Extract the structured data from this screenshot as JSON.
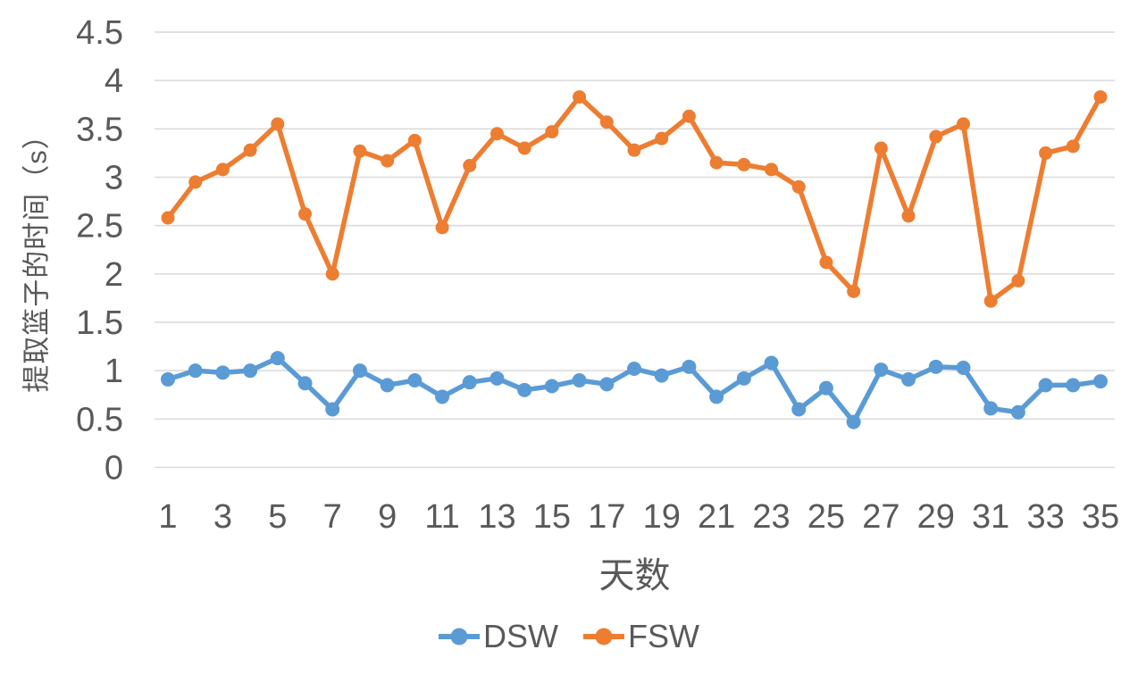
{
  "colors": {
    "background": "#ffffff",
    "grid": "#d9d9d9",
    "text": "#595959",
    "dsw_blue": "#5b9bd5",
    "fsw_orange": "#ed7d31"
  },
  "chart_data": {
    "type": "line",
    "title": "",
    "xlabel": "天数",
    "ylabel": "提取篮子的时间（s）",
    "ylim": [
      0,
      4.5
    ],
    "grid": "horizontal-only",
    "legend_position": "bottom-center",
    "y_ticks": [
      {
        "value": 0,
        "label": "0"
      },
      {
        "value": 0.5,
        "label": "0.5"
      },
      {
        "value": 1,
        "label": "1"
      },
      {
        "value": 1.5,
        "label": "1.5"
      },
      {
        "value": 2,
        "label": "2"
      },
      {
        "value": 2.5,
        "label": "2.5"
      },
      {
        "value": 3,
        "label": "3"
      },
      {
        "value": 3.5,
        "label": "3.5"
      },
      {
        "value": 4,
        "label": "4"
      },
      {
        "value": 4.5,
        "label": "4.5"
      }
    ],
    "x": [
      1,
      2,
      3,
      4,
      5,
      6,
      7,
      8,
      9,
      10,
      11,
      12,
      13,
      14,
      15,
      16,
      17,
      18,
      19,
      20,
      21,
      22,
      23,
      24,
      25,
      26,
      27,
      28,
      29,
      30,
      31,
      32,
      33,
      34,
      35
    ],
    "x_labeled_ticks": [
      1,
      3,
      5,
      7,
      9,
      11,
      13,
      15,
      17,
      19,
      21,
      23,
      25,
      27,
      29,
      31,
      33,
      35
    ],
    "series": [
      {
        "name": "DSW",
        "color": "#5b9bd5",
        "marker": "circle",
        "values": [
          0.91,
          1.0,
          0.98,
          1.0,
          1.13,
          0.87,
          0.6,
          1.0,
          0.85,
          0.9,
          0.73,
          0.88,
          0.92,
          0.8,
          0.84,
          0.9,
          0.86,
          1.02,
          0.95,
          1.04,
          0.73,
          0.92,
          1.08,
          0.6,
          0.82,
          0.47,
          1.01,
          0.91,
          1.04,
          1.03,
          0.61,
          0.57,
          0.85,
          0.85,
          0.89
        ]
      },
      {
        "name": "FSW",
        "color": "#ed7d31",
        "marker": "circle",
        "values": [
          2.58,
          2.95,
          3.08,
          3.28,
          3.55,
          2.62,
          2.0,
          3.27,
          3.17,
          3.38,
          2.48,
          3.12,
          3.45,
          3.3,
          3.47,
          3.83,
          3.57,
          3.28,
          3.4,
          3.63,
          3.15,
          3.13,
          3.08,
          2.9,
          2.12,
          1.82,
          3.3,
          2.6,
          3.42,
          3.55,
          1.72,
          1.93,
          3.25,
          3.32,
          3.83
        ]
      }
    ]
  }
}
